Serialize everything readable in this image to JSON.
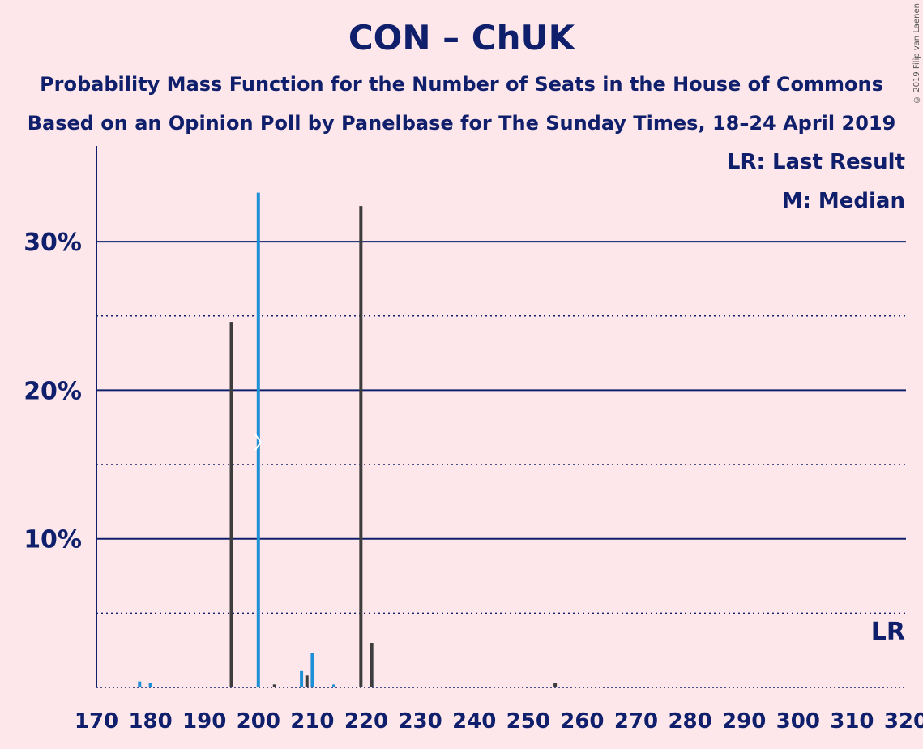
{
  "header": {
    "title": "CON – ChUK",
    "subtitle1": "Probability Mass Function for the Number of Seats in the House of Commons",
    "subtitle2": "Based on an Opinion Poll by Panelbase for The Sunday Times, 18–24 April 2019",
    "copyright": "© 2019 Filip van Laenen"
  },
  "legend": {
    "last_result": "LR: Last Result",
    "median": "M: Median",
    "lr_marker": "LR"
  },
  "colors": {
    "background": "#fde7ea",
    "text": "#0f1f6b",
    "con_bar": "#1e90d6",
    "chuk_bar": "#3d3d3d",
    "gridline": "#0f1f6b"
  },
  "chart_data": {
    "type": "bar",
    "title": "CON – ChUK",
    "xlabel": "",
    "ylabel": "",
    "xlim": [
      170,
      320
    ],
    "ylim": [
      0,
      36
    ],
    "yticks": [
      "10%",
      "20%",
      "30%"
    ],
    "xticks": [
      "170",
      "180",
      "190",
      "200",
      "210",
      "220",
      "230",
      "240",
      "250",
      "260",
      "270",
      "280",
      "290",
      "300",
      "310",
      "320"
    ],
    "grid": "solid at 10% steps, dotted at 5% steps",
    "median_marker": {
      "party": "CON",
      "seats": 200,
      "label": "M"
    },
    "last_result_marker": {
      "seats": 320,
      "label": "LR"
    },
    "series": [
      {
        "name": "CON",
        "points": [
          {
            "x": 178,
            "y": 0.4
          },
          {
            "x": 180,
            "y": 0.3
          },
          {
            "x": 200,
            "y": 33.3
          },
          {
            "x": 208,
            "y": 1.1
          },
          {
            "x": 210,
            "y": 2.3
          },
          {
            "x": 214,
            "y": 0.2
          },
          {
            "x": 221,
            "y": 0.5
          }
        ]
      },
      {
        "name": "ChUK",
        "points": [
          {
            "x": 195,
            "y": 24.6
          },
          {
            "x": 203,
            "y": 0.2
          },
          {
            "x": 209,
            "y": 0.8
          },
          {
            "x": 219,
            "y": 32.4
          },
          {
            "x": 221,
            "y": 3.0
          },
          {
            "x": 255,
            "y": 0.3
          }
        ]
      }
    ]
  }
}
